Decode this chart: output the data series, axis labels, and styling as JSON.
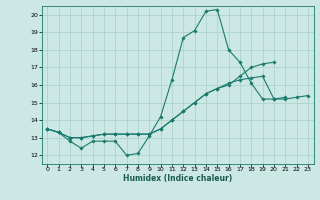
{
  "xlabel": "Humidex (Indice chaleur)",
  "bg_color": "#cce8e4",
  "grid_color": "#aacfca",
  "line_color": "#1a7a6e",
  "xlim": [
    -0.5,
    23.5
  ],
  "ylim": [
    11.5,
    20.5
  ],
  "xticks": [
    0,
    1,
    2,
    3,
    4,
    5,
    6,
    7,
    8,
    9,
    10,
    11,
    12,
    13,
    14,
    15,
    16,
    17,
    18,
    19,
    20,
    21,
    22,
    23
  ],
  "yticks": [
    12,
    13,
    14,
    15,
    16,
    17,
    18,
    19,
    20
  ],
  "series": [
    {
      "x": [
        0,
        1,
        2,
        3,
        4,
        5,
        6,
        7,
        8,
        9,
        10,
        11,
        12,
        13,
        14,
        15,
        16,
        17,
        18,
        19,
        20,
        21
      ],
      "y": [
        13.5,
        13.3,
        12.8,
        12.4,
        12.8,
        12.8,
        12.8,
        12.0,
        12.1,
        13.1,
        14.2,
        16.3,
        18.7,
        19.1,
        20.2,
        20.3,
        18.0,
        17.3,
        16.1,
        15.2,
        15.2,
        15.3
      ]
    },
    {
      "x": [
        0,
        1,
        2,
        3,
        4,
        5,
        6,
        7,
        8,
        9,
        10,
        11,
        12,
        13,
        14,
        15,
        16,
        17,
        18,
        19,
        20
      ],
      "y": [
        13.5,
        13.3,
        13.0,
        13.0,
        13.1,
        13.2,
        13.2,
        13.2,
        13.2,
        13.2,
        13.5,
        14.0,
        14.5,
        15.0,
        15.5,
        15.8,
        16.0,
        16.5,
        17.0,
        17.2,
        17.3
      ]
    },
    {
      "x": [
        0,
        1,
        2,
        3,
        4,
        5,
        6,
        7,
        8,
        9,
        10,
        11,
        12,
        13,
        14,
        15,
        16,
        17,
        18,
        19,
        20,
        21,
        22,
        23
      ],
      "y": [
        13.5,
        13.3,
        13.0,
        13.0,
        13.1,
        13.2,
        13.2,
        13.2,
        13.2,
        13.2,
        13.5,
        14.0,
        14.5,
        15.0,
        15.5,
        15.8,
        16.1,
        16.3,
        16.4,
        16.5,
        15.2,
        15.2,
        15.3,
        15.4
      ]
    }
  ]
}
